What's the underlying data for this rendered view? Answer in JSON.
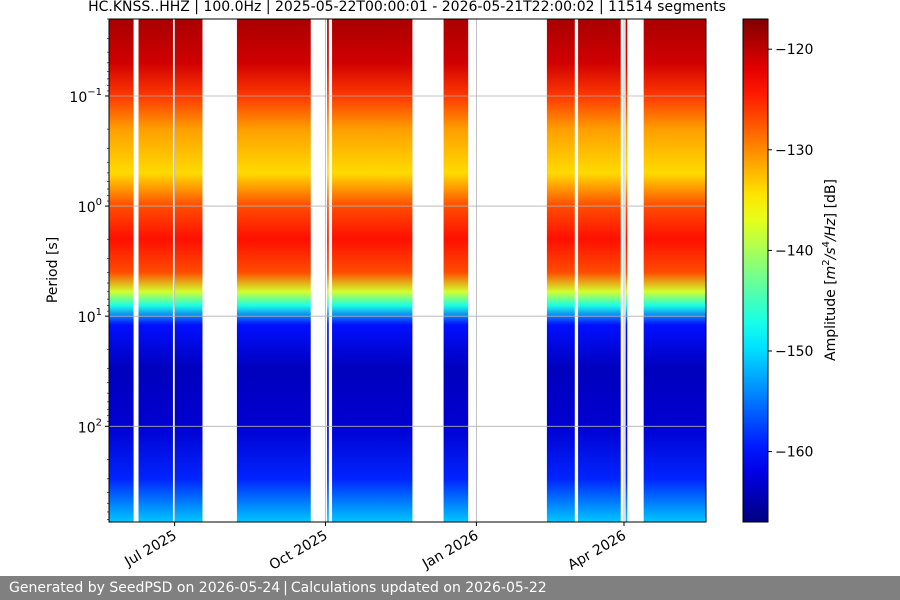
{
  "chart_data": {
    "type": "heatmap",
    "title": "HC.KNSS..HHZ | 100.0Hz | 2025-05-22T00:00:01 - 2026-05-21T22:00:02 | 11514 segments",
    "xlabel": "",
    "ylabel": "Period [s]",
    "colorbar_label": "Amplitude [m²/s⁴/Hz] [dB]",
    "colorbar_ticks": [
      -120,
      -130,
      -140,
      -150,
      -160
    ],
    "colorbar_tick_labels": [
      "−120",
      "−130",
      "−140",
      "−150",
      "−160"
    ],
    "color_range_db": [
      -167,
      -117
    ],
    "colormap": "jet",
    "x_range": [
      "2025-05-22",
      "2026-05-21"
    ],
    "x_ticks": [
      "2025-07-01",
      "2025-10-01",
      "2026-01-01",
      "2026-04-01"
    ],
    "x_tick_labels": [
      "Jul 2025",
      "Oct 2025",
      "Jan 2026",
      "Apr 2026"
    ],
    "y_scale": "log",
    "y_inverted": true,
    "y_range_s": [
      0.02,
      740
    ],
    "y_ticks": [
      0.1,
      1,
      10,
      100
    ],
    "y_tick_labels": [
      {
        "base": "10",
        "exp": "−1"
      },
      {
        "base": "10",
        "exp": "0"
      },
      {
        "base": "10",
        "exp": "1"
      },
      {
        "base": "10",
        "exp": "2"
      }
    ],
    "grid": true,
    "data_intervals": [
      [
        "2025-05-22",
        "2025-06-06"
      ],
      [
        "2025-06-09",
        "2025-06-30"
      ],
      [
        "2025-07-01",
        "2025-07-18"
      ],
      [
        "2025-08-08",
        "2025-09-22"
      ],
      [
        "2025-10-02",
        "2025-10-03"
      ],
      [
        "2025-10-05",
        "2025-11-23"
      ],
      [
        "2025-12-12",
        "2025-12-27"
      ],
      [
        "2026-02-13",
        "2026-03-02"
      ],
      [
        "2026-03-04",
        "2026-03-30"
      ],
      [
        "2026-04-02",
        "2026-04-03"
      ],
      [
        "2026-04-13",
        "2026-05-21"
      ]
    ],
    "psd_profile_db": [
      {
        "period_s": 0.02,
        "db": -119
      },
      {
        "period_s": 0.05,
        "db": -121
      },
      {
        "period_s": 0.1,
        "db": -126
      },
      {
        "period_s": 0.2,
        "db": -131
      },
      {
        "period_s": 0.5,
        "db": -134
      },
      {
        "period_s": 1,
        "db": -127
      },
      {
        "period_s": 2,
        "db": -124
      },
      {
        "period_s": 4,
        "db": -127
      },
      {
        "period_s": 6,
        "db": -138
      },
      {
        "period_s": 8,
        "db": -147
      },
      {
        "period_s": 12,
        "db": -160
      },
      {
        "period_s": 30,
        "db": -164
      },
      {
        "period_s": 100,
        "db": -163
      },
      {
        "period_s": 300,
        "db": -159
      },
      {
        "period_s": 740,
        "db": -151
      }
    ]
  },
  "footer": {
    "generated": "Generated by SeedPSD on 2026-05-24",
    "separator": "|",
    "updated": "Calculations updated on 2026-05-22"
  }
}
